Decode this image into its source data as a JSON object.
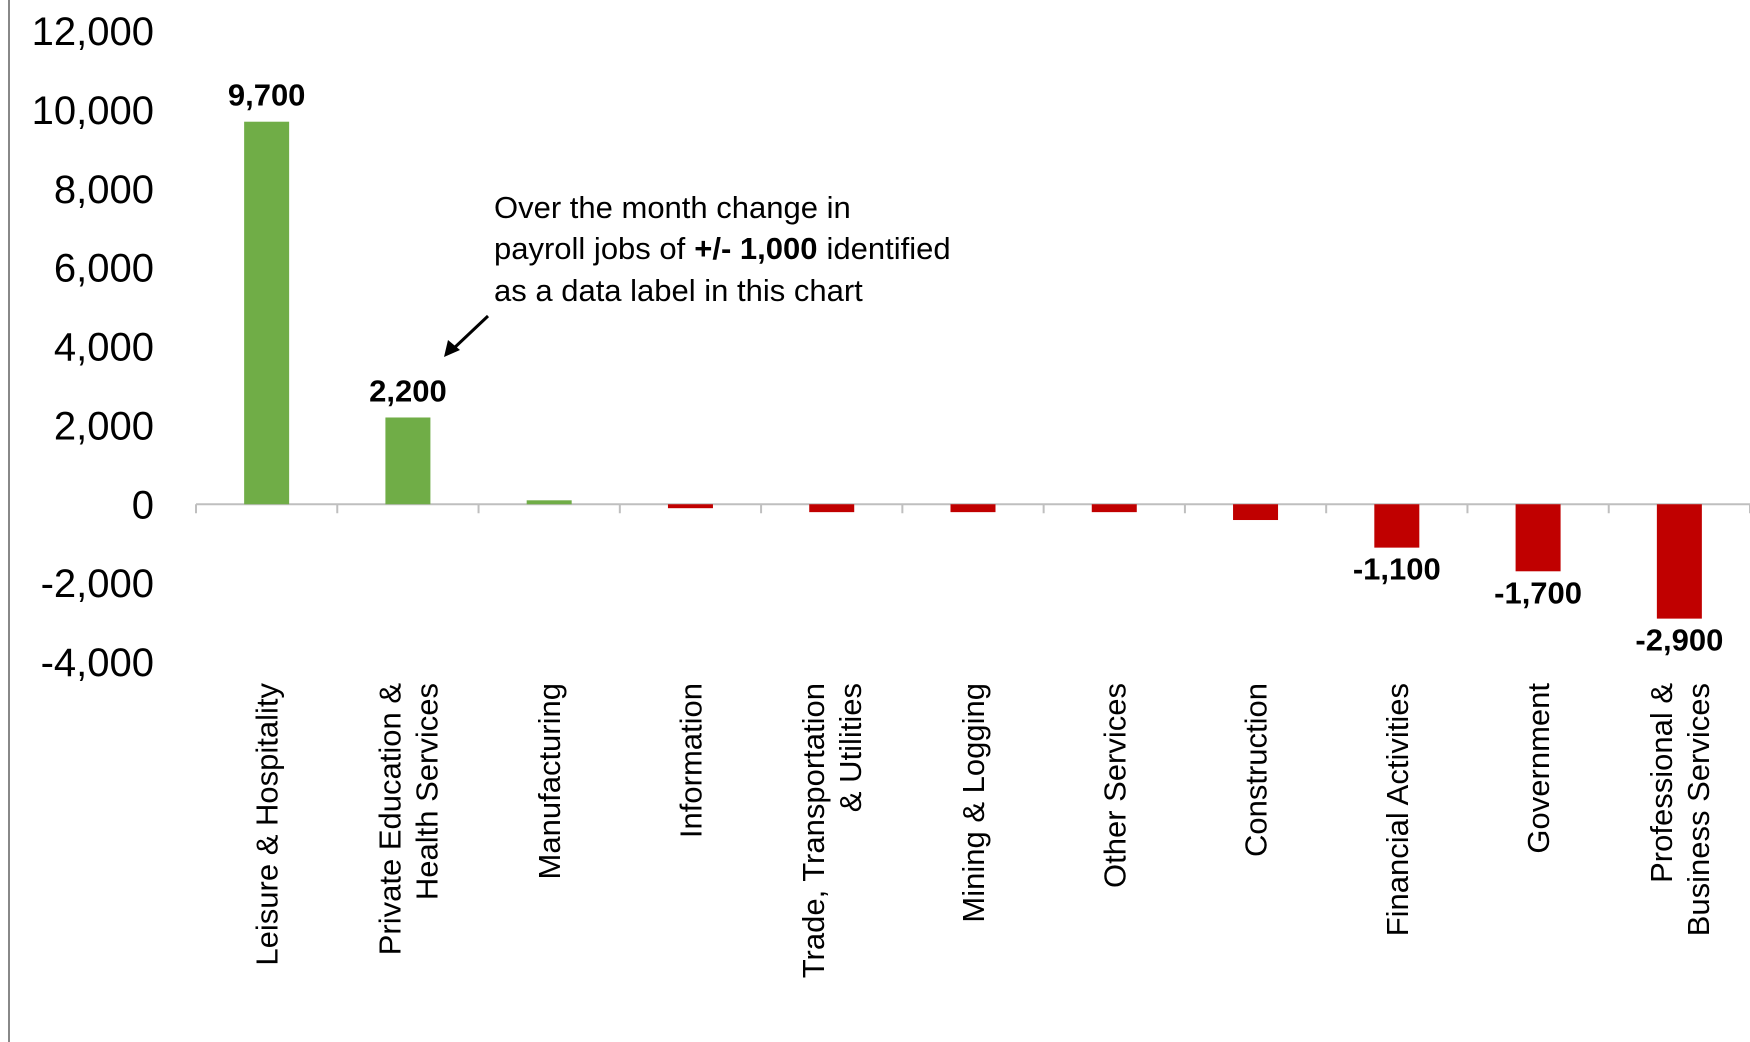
{
  "chart_data": {
    "type": "bar",
    "categories": [
      "Leisure & Hospitality",
      "Private Education &\nHealth Services",
      "Manufacturing",
      "Information",
      "Trade, Transportation\n& Utilities",
      "Mining & Logging",
      "Other Services",
      "Construction",
      "Financial Activities",
      "Government",
      "Professional &\nBusiness Services"
    ],
    "values": [
      9700,
      2200,
      100,
      -100,
      -200,
      -200,
      -200,
      -400,
      -1100,
      -1700,
      -2900
    ],
    "value_labels": [
      "9,700",
      "2,200",
      null,
      null,
      null,
      null,
      null,
      null,
      "-1,100",
      "-1,700",
      "-2,900"
    ],
    "positive_color": "#70ad47",
    "negative_color": "#c00000",
    "ylim": [
      -4000,
      12000
    ],
    "yticks": [
      {
        "value": -4000,
        "label": "-4,000"
      },
      {
        "value": -2000,
        "label": "-2,000"
      },
      0,
      {
        "value": 2000,
        "label": "2,000"
      },
      {
        "value": 4000,
        "label": "4,000"
      },
      {
        "value": 6000,
        "label": "6,000"
      },
      {
        "value": 8000,
        "label": "8,000"
      },
      {
        "value": 10000,
        "label": "10,000"
      },
      {
        "value": 12000,
        "label": "12,000"
      }
    ],
    "grid": false,
    "annotation": {
      "line1": "Over the month change in",
      "line2_start": "payroll jobs of",
      "line2_bold": "+/- 1,000",
      "line2_end": "identified",
      "line3": "as a data label in this chart"
    }
  }
}
